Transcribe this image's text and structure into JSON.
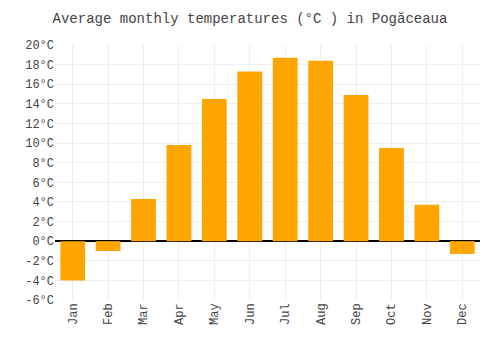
{
  "chart_data": {
    "type": "bar",
    "title": "Average monthly temperatures (°C ) in Pogăceaua",
    "categories": [
      "Jan",
      "Feb",
      "Mar",
      "Apr",
      "May",
      "Jun",
      "Jul",
      "Aug",
      "Sep",
      "Oct",
      "Nov",
      "Dec"
    ],
    "values": [
      -4.0,
      -1.0,
      4.3,
      9.8,
      14.5,
      17.3,
      18.7,
      18.4,
      14.9,
      9.5,
      3.7,
      -1.3
    ],
    "color": "#FFA500",
    "ylim": [
      -6,
      20
    ],
    "yticks": [
      {
        "value": -6,
        "label": "-6°C"
      },
      {
        "value": -4,
        "label": "-4°C"
      },
      {
        "value": -2,
        "label": "-2°C"
      },
      {
        "value": 0,
        "label": "0°C"
      },
      {
        "value": 2,
        "label": "2°C"
      },
      {
        "value": 4,
        "label": "4°C"
      },
      {
        "value": 6,
        "label": "6°C"
      },
      {
        "value": 8,
        "label": "8°C"
      },
      {
        "value": 10,
        "label": "10°C"
      },
      {
        "value": 12,
        "label": "12°C"
      },
      {
        "value": 14,
        "label": "14°C"
      },
      {
        "value": 16,
        "label": "16°C"
      },
      {
        "value": 18,
        "label": "18°C"
      },
      {
        "value": 20,
        "label": "20°C"
      }
    ],
    "grid": true
  }
}
